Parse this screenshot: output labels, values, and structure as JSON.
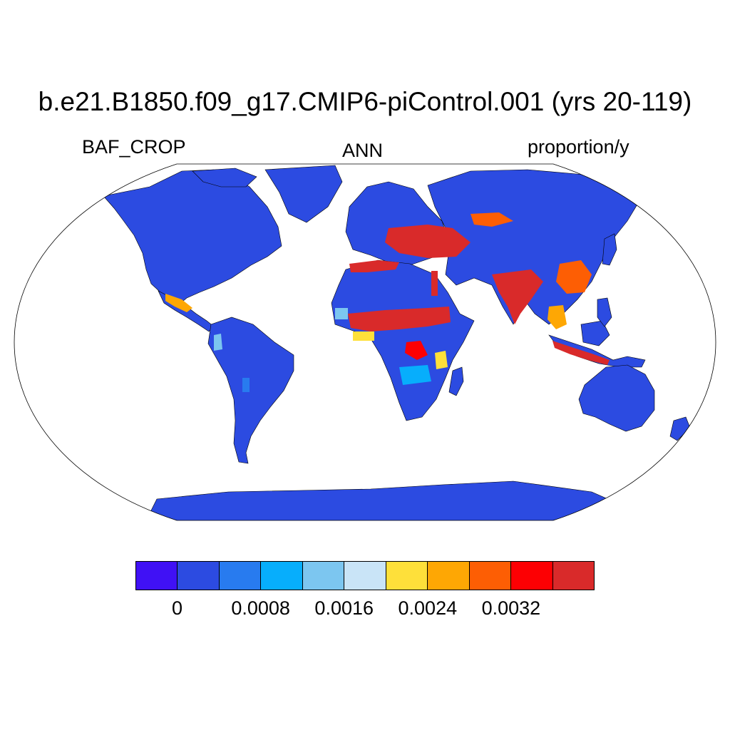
{
  "title": "b.e21.B1850.f09_g17.CMIP6-piControl.001 (yrs 20-119)",
  "left_label": "BAF_CROP",
  "center_label": "ANN",
  "right_label": "proportion/y",
  "colorbar": {
    "colors": [
      "#4011f5",
      "#2c4be1",
      "#287bef",
      "#07aefc",
      "#7cc6f0",
      "#c9e4f7",
      "#fee03a",
      "#fea704",
      "#fd5e04",
      "#fd0003",
      "#d92a2a"
    ],
    "tick_labels": [
      "0",
      "0.0008",
      "0.0016",
      "0.0024",
      "0.0032"
    ]
  },
  "map": {
    "projection": "Robinson",
    "land_color": "#2c4be1",
    "ocean_color": "#ffffff"
  }
}
